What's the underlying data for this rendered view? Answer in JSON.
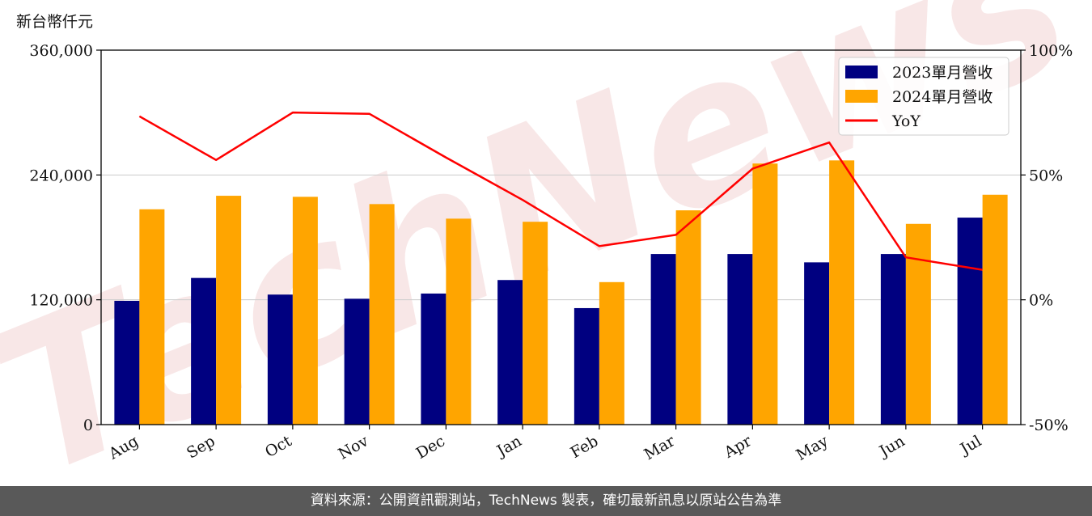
{
  "unit_label": "新台幣仟元",
  "footer": "資料來源：公開資訊觀測站，TechNews 製表，確切最新訊息以原站公告為準",
  "watermark": "TechNews",
  "colors": {
    "series_2023": "#000080",
    "series_2024": "#FFA500",
    "yoy": "#FF0000",
    "grid": "#cccccc",
    "footer_bg": "#595959",
    "watermark": "#f2d4d4"
  },
  "chart_data": {
    "type": "bar",
    "categories": [
      "Aug",
      "Sep",
      "Oct",
      "Nov",
      "Dec",
      "Jan",
      "Feb",
      "Mar",
      "Apr",
      "May",
      "Jun",
      "Jul"
    ],
    "series": [
      {
        "name": "2023單月營收",
        "type": "bar",
        "axis": "left",
        "values": [
          119000,
          141000,
          125000,
          121000,
          126000,
          139000,
          112000,
          164000,
          164000,
          156000,
          164000,
          199000
        ]
      },
      {
        "name": "2024單月營收",
        "type": "bar",
        "axis": "left",
        "values": [
          207000,
          220000,
          219000,
          212000,
          198000,
          195000,
          137000,
          206000,
          251000,
          254000,
          193000,
          221000
        ]
      },
      {
        "name": "YoY",
        "type": "line",
        "axis": "right",
        "values": [
          73.5,
          56,
          75,
          74.5,
          57,
          40,
          21.5,
          26,
          52.5,
          63,
          17,
          12
        ]
      }
    ],
    "y_left": {
      "ticks": [
        "0",
        "120,000",
        "240,000",
        "360,000"
      ],
      "range": [
        0,
        360000
      ]
    },
    "y_right": {
      "ticks": [
        "-50%",
        "0%",
        "50%",
        "100%"
      ],
      "range": [
        -50,
        100
      ]
    },
    "legend_position": "top-right",
    "grid": "horizontal"
  }
}
